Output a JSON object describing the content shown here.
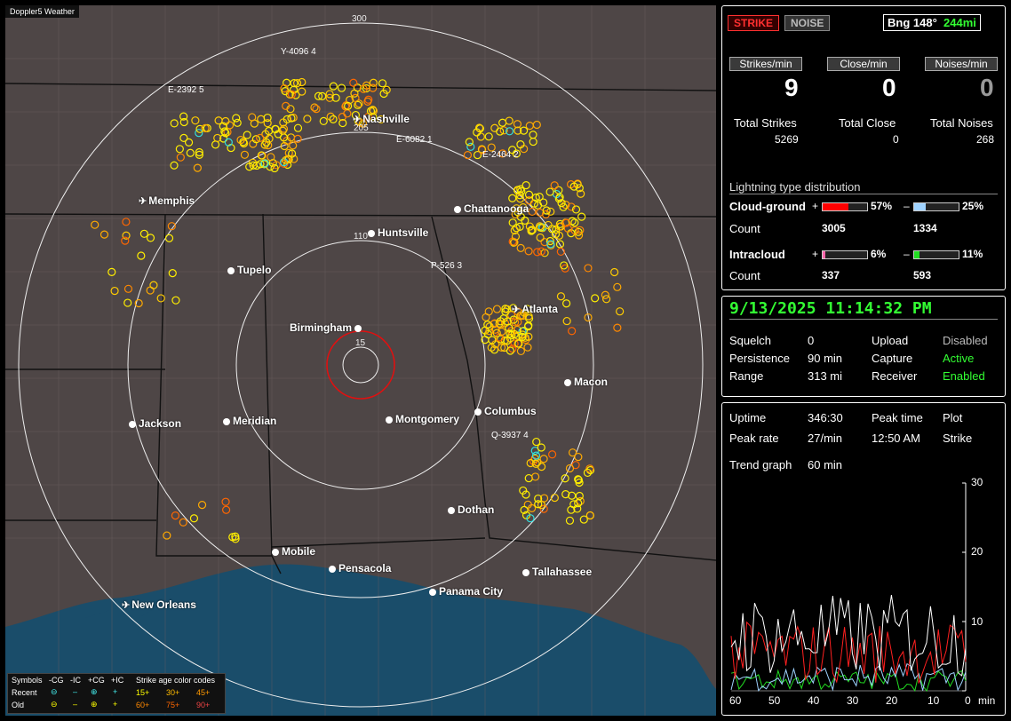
{
  "app_title": "Doppler5 Weather",
  "map": {
    "range_labels": [
      "300",
      "205",
      "110",
      "15"
    ],
    "cities": [
      {
        "name": "Nashville",
        "kind": "airport"
      },
      {
        "name": "Memphis",
        "kind": "airport"
      },
      {
        "name": "Chattanooga",
        "kind": "city"
      },
      {
        "name": "Huntsville",
        "kind": "city"
      },
      {
        "name": "Tupelo",
        "kind": "city"
      },
      {
        "name": "Atlanta",
        "kind": "airport"
      },
      {
        "name": "Birmingham",
        "kind": "city"
      },
      {
        "name": "Macon",
        "kind": "city"
      },
      {
        "name": "Jackson",
        "kind": "city"
      },
      {
        "name": "Meridian",
        "kind": "city"
      },
      {
        "name": "Montgomery",
        "kind": "city"
      },
      {
        "name": "Columbus",
        "kind": "city"
      },
      {
        "name": "Dothan",
        "kind": "city"
      },
      {
        "name": "Mobile",
        "kind": "city"
      },
      {
        "name": "Pensacola",
        "kind": "city"
      },
      {
        "name": "Tallahassee",
        "kind": "city"
      },
      {
        "name": "Panama City",
        "kind": "city"
      },
      {
        "name": "New Orleans",
        "kind": "airport"
      }
    ],
    "storm_tags": [
      "Y-4096 4",
      "E-2392 5",
      "E-6082 1",
      "E-2464 2",
      "P-526 3",
      "Q-3937 4"
    ],
    "legend": {
      "symbols_label": "Symbols",
      "headers": [
        "-CG",
        "-IC",
        "+CG",
        "+IC"
      ],
      "rows": [
        "Recent",
        "Old"
      ],
      "age_title": "Strike age color codes",
      "recent_ages": [
        "15+",
        "30+",
        "45+"
      ],
      "old_ages": [
        "60+",
        "75+",
        "90+"
      ]
    }
  },
  "status": {
    "strike_btn": "STRIKE",
    "noise_btn": "NOISE",
    "bearing": "Bng 148°",
    "distance": "244mi",
    "rates": [
      {
        "header": "Strikes/min",
        "value": "9"
      },
      {
        "header": "Close/min",
        "value": "0"
      },
      {
        "header": "Noises/min",
        "value": "0"
      }
    ],
    "totals": [
      {
        "label": "Total Strikes",
        "value": "5269"
      },
      {
        "label": "Total Close",
        "value": "0"
      },
      {
        "label": "Total Noises",
        "value": "268"
      }
    ],
    "dist_title": "Lightning type distribution",
    "cg_label": "Cloud-ground",
    "ic_label": "Intracloud",
    "count_label": "Count",
    "plus": "+",
    "minus": "–",
    "cg_pos_pct": "57%",
    "cg_pos_fill": 0.57,
    "cg_pos_count": "3005",
    "cg_neg_pct": "25%",
    "cg_neg_fill": 0.25,
    "cg_neg_count": "1334",
    "ic_pos_pct": "6%",
    "ic_pos_fill": 0.06,
    "ic_pos_count": "337",
    "ic_neg_pct": "11%",
    "ic_neg_fill": 0.11,
    "ic_neg_count": "593",
    "colors": {
      "cg_pos": "#ff0000",
      "cg_neg": "#9fd3ff",
      "ic_pos": "#ff66aa",
      "ic_neg": "#22dd22"
    }
  },
  "info": {
    "datetime": "9/13/2025 11:14:32 PM",
    "squelch_label": "Squelch",
    "squelch": "0",
    "persistence_label": "Persistence",
    "persistence": "90 min",
    "range_label": "Range",
    "range": "313 mi",
    "upload_label": "Upload",
    "upload": "Disabled",
    "capture_label": "Capture",
    "capture": "Active",
    "receiver_label": "Receiver",
    "receiver": "Enabled"
  },
  "trend": {
    "uptime_label": "Uptime",
    "uptime": "346:30",
    "peak_time_label": "Peak time",
    "peak_time": "12:50 AM",
    "plot_label": "Plot",
    "plot": "Strike",
    "peak_rate_label": "Peak rate",
    "peak_rate": "27/min",
    "graph_label": "Trend graph",
    "graph_span": "60 min",
    "chart_data": {
      "type": "line",
      "x_ticks": [
        "60",
        "50",
        "40",
        "30",
        "20",
        "10",
        "0"
      ],
      "x_unit": "min",
      "y_ticks": [
        "30",
        "20",
        "10"
      ],
      "ylim": [
        0,
        30
      ]
    }
  }
}
